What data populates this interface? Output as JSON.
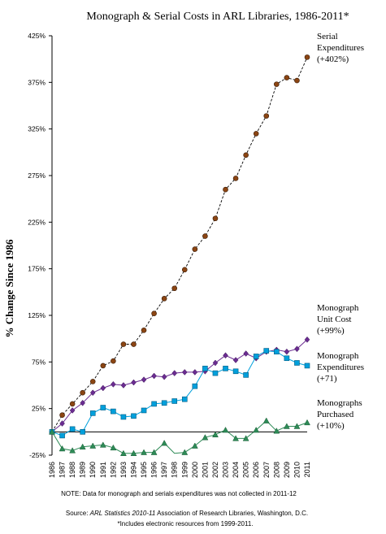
{
  "chart_data": {
    "type": "line",
    "title": "Monograph & Serial Costs in ARL Libraries, 1986-2011*",
    "ylabel": "% Change Since 1986",
    "xlabel": "",
    "ylim": [
      -25,
      425
    ],
    "yticks": [
      -25,
      25,
      75,
      125,
      175,
      225,
      275,
      325,
      375,
      425
    ],
    "ytick_labels": [
      "-25%",
      "25%",
      "75%",
      "125%",
      "175%",
      "225%",
      "275%",
      "325%",
      "375%",
      "425%"
    ],
    "x": [
      "1986",
      "1987",
      "1988",
      "1989",
      "1990",
      "1991",
      "1992",
      "1993",
      "1994",
      "1995",
      "1996",
      "1997",
      "1998",
      "1999",
      "2000",
      "2001",
      "2002",
      "2003",
      "2004",
      "2005",
      "2006",
      "2007",
      "2008",
      "2009",
      "2010",
      "2011"
    ],
    "grid": false,
    "series": [
      {
        "name": "Serial Expenditures",
        "annotation": [
          "Serial",
          "Expenditures",
          "(+402%)"
        ],
        "color": "#8B4513",
        "marker": "circle",
        "values": [
          0,
          18,
          30,
          42,
          54,
          71,
          76,
          94,
          94,
          109,
          127,
          143,
          154,
          174,
          196,
          210,
          229,
          260,
          272,
          297,
          320,
          339,
          373,
          380,
          377,
          402
        ]
      },
      {
        "name": "Monograph Unit Cost",
        "annotation": [
          "Monograph",
          "Unit Cost",
          "(+99%)"
        ],
        "color": "#6B2C91",
        "marker": "diamond",
        "values": [
          0,
          9,
          23,
          31,
          42,
          47,
          51,
          50,
          53,
          56,
          60,
          59,
          63,
          64,
          64,
          65,
          74,
          82,
          77,
          84,
          79,
          86,
          88,
          86,
          89,
          99
        ]
      },
      {
        "name": "Monograph Expenditures",
        "annotation": [
          "Monograph",
          "Expenditures",
          "(+71)"
        ],
        "color": "#00A0DC",
        "marker": "square",
        "values": [
          0,
          -4,
          3,
          0,
          20,
          26,
          22,
          16,
          17,
          23,
          30,
          31,
          33,
          35,
          49,
          68,
          63,
          68,
          65,
          61,
          81,
          87,
          86,
          79,
          74,
          71
        ]
      },
      {
        "name": "Monographs Purchased",
        "annotation": [
          "Monographs",
          "Purchased",
          "(+10%)"
        ],
        "color": "#2E8B57",
        "marker": "triangle",
        "values": [
          0,
          -18,
          -20,
          -16,
          -15,
          -14,
          -17,
          -23,
          -23,
          -22,
          -22,
          -12,
          null,
          -22,
          -15,
          -6,
          -3,
          2,
          -7,
          -7,
          2,
          12,
          1,
          6,
          6,
          10
        ]
      }
    ],
    "note": "NOTE: Data for monograph and serials expenditures was not collected in 2011-12",
    "source": {
      "prefix": "Source:",
      "italic": "ARL Statistics 2010-11",
      "rest": " Association of Research Libraries, Washington, D.C."
    },
    "footnote": "*Includes electronic resources from 1999-2011."
  }
}
